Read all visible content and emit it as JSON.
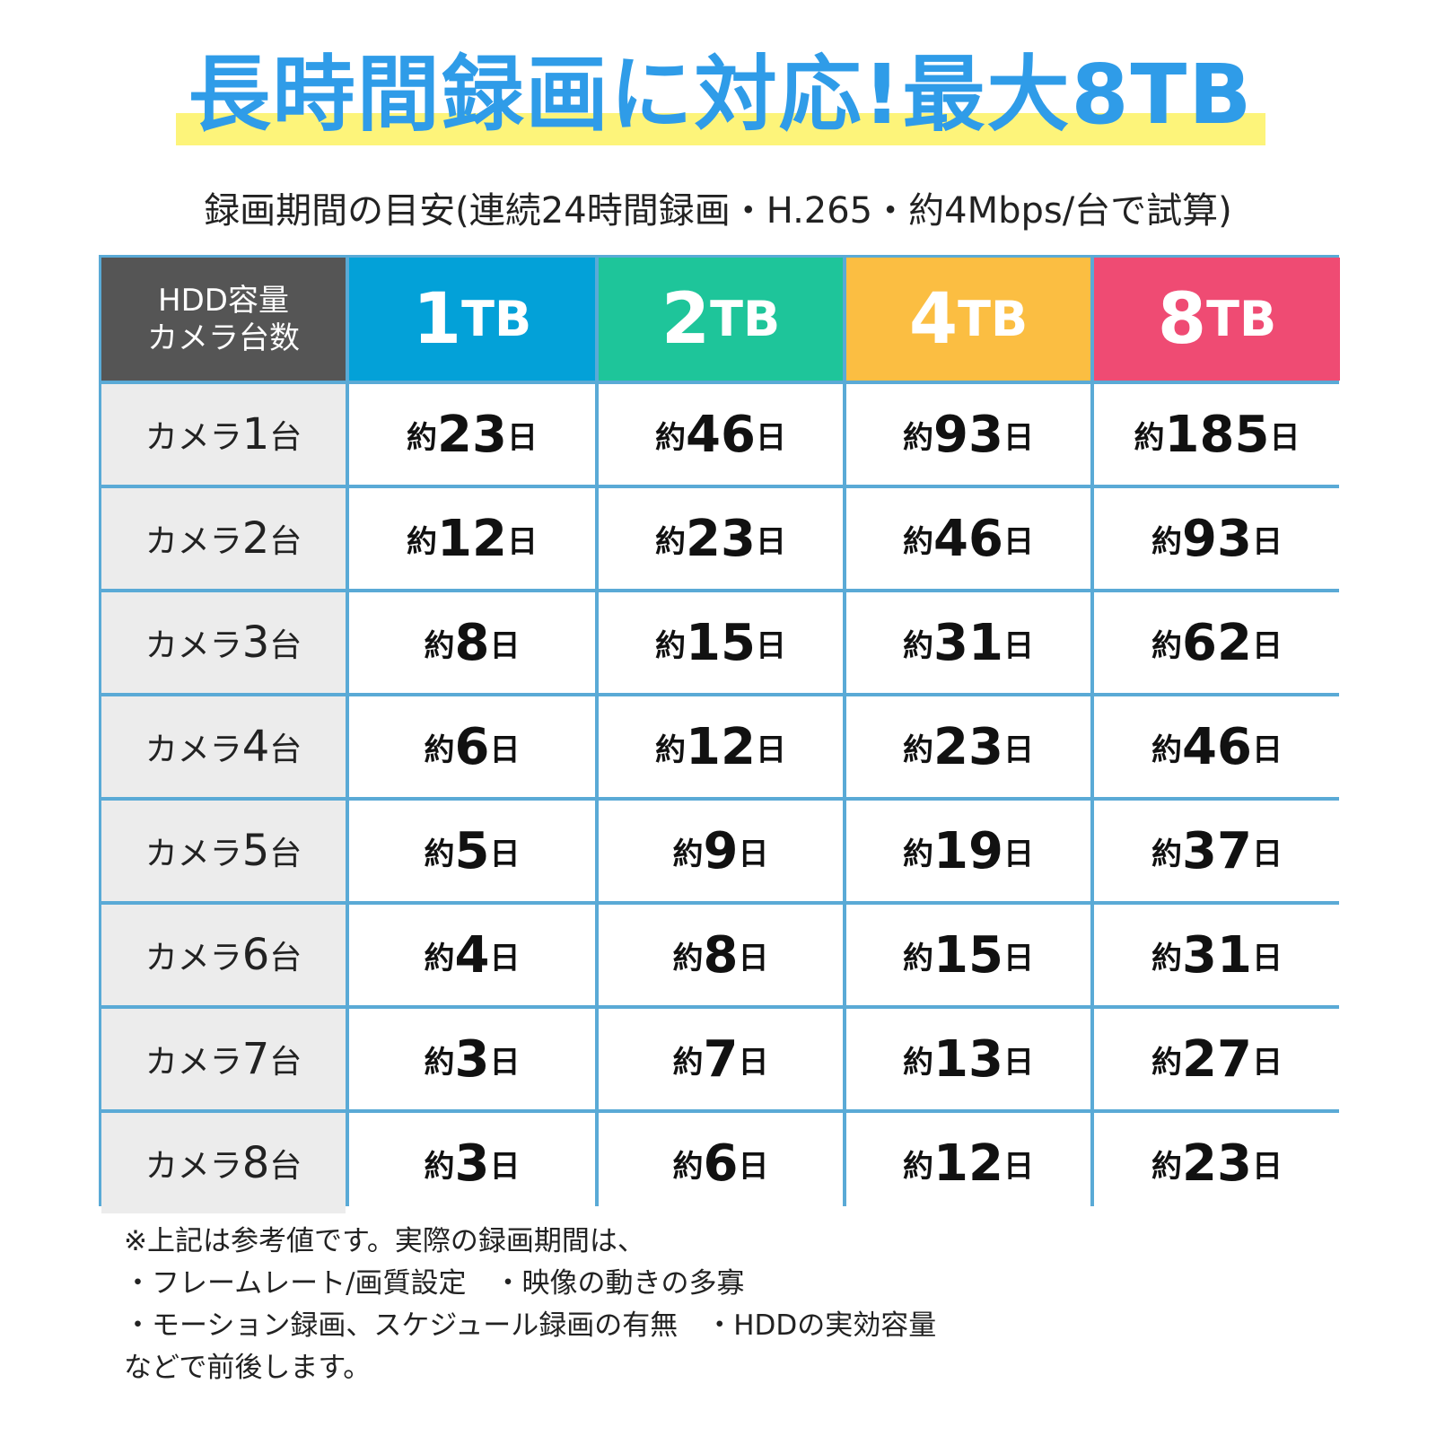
{
  "title": "長時間録画に対応!最大8TB",
  "subtitle": "録画期間の目安(連続24時間録画・H.265・約4Mbps/台で試算)",
  "colors": {
    "title": "#2f9ce8",
    "highlight": "#fdf47a",
    "grid": "#5aaad6",
    "header_dark": "#555555",
    "tb1": "#03a1d8",
    "tb2": "#1ec59a",
    "tb4": "#fbbe42",
    "tb8": "#ef4b73",
    "row_header_bg": "#ececec"
  },
  "table": {
    "corner_line1": "HDD容量",
    "corner_line2": "カメラ台数",
    "capacities": [
      {
        "num": "1",
        "unit": "TB",
        "color": "#03a1d8"
      },
      {
        "num": "2",
        "unit": "TB",
        "color": "#1ec59a"
      },
      {
        "num": "4",
        "unit": "TB",
        "color": "#fbbe42"
      },
      {
        "num": "8",
        "unit": "TB",
        "color": "#ef4b73"
      }
    ],
    "row_prefix": "カメラ",
    "row_suffix": "台",
    "value_prefix": "約",
    "value_suffix": "日",
    "rows": [
      {
        "cameras": "1",
        "values": [
          "23",
          "46",
          "93",
          "185"
        ]
      },
      {
        "cameras": "2",
        "values": [
          "12",
          "23",
          "46",
          "93"
        ]
      },
      {
        "cameras": "3",
        "values": [
          "8",
          "15",
          "31",
          "62"
        ]
      },
      {
        "cameras": "4",
        "values": [
          "6",
          "12",
          "23",
          "46"
        ]
      },
      {
        "cameras": "5",
        "values": [
          "5",
          "9",
          "19",
          "37"
        ]
      },
      {
        "cameras": "6",
        "values": [
          "4",
          "8",
          "15",
          "31"
        ]
      },
      {
        "cameras": "7",
        "values": [
          "3",
          "7",
          "13",
          "27"
        ]
      },
      {
        "cameras": "8",
        "values": [
          "3",
          "6",
          "12",
          "23"
        ]
      }
    ]
  },
  "notes": [
    "※上記は参考値です。実際の録画期間は、",
    "・フレームレート/画質設定　・映像の動きの多寡",
    "・モーション録画、スケジュール録画の有無　・HDDの実効容量",
    "などで前後します。"
  ]
}
